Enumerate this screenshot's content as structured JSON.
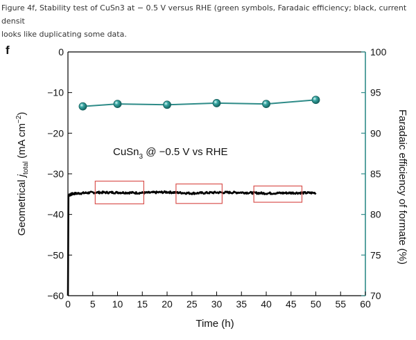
{
  "caption": "Figure 4f, Stability test of CuSn3 at − 0.5 V versus RHE (green symbols, Faradaic efficiency; black, current densit\nlooks like duplicating some data.",
  "chart_data": {
    "type": "line",
    "panel_label": "f",
    "xlabel": "Time (h)",
    "ylabel_left": "Geometrical j_total (mA cm⁻²)",
    "ylabel_left_parts": {
      "pre": "Geometrical ",
      "j": "j",
      "sub": "total",
      "post": " (mA cm",
      "sup": "−2",
      "close": ")"
    },
    "ylabel_right": "Faradaic efficiency of formate (%)",
    "annotation": {
      "text": "CuSn",
      "sub": "3",
      "rest": " @ −0.5 V vs RHE"
    },
    "xlim": [
      0,
      60
    ],
    "ylim_left": [
      -60,
      0
    ],
    "ylim_right": [
      70,
      100
    ],
    "xticks": [
      0,
      5,
      10,
      15,
      20,
      25,
      30,
      35,
      40,
      45,
      50,
      55,
      60
    ],
    "yticks_left": [
      0,
      -10,
      -20,
      -30,
      -40,
      -50,
      -60
    ],
    "ytick_labels_left": [
      "0",
      "−10",
      "−20",
      "−30",
      "−40",
      "−50",
      "−60"
    ],
    "yticks_right": [
      100,
      95,
      90,
      85,
      80,
      75,
      70
    ],
    "series": [
      {
        "axis": "left",
        "color": "#000000",
        "points": [
          [
            0,
            -60
          ],
          [
            0.1,
            -35.3
          ],
          [
            1,
            -34.9
          ],
          [
            5,
            -34.6
          ],
          [
            10,
            -34.6
          ],
          [
            15,
            -34.7
          ],
          [
            20,
            -34.5
          ],
          [
            25,
            -34.8
          ],
          [
            30,
            -34.6
          ],
          [
            35,
            -34.6
          ],
          [
            40,
            -34.8
          ],
          [
            45,
            -34.7
          ],
          [
            50,
            -34.7
          ]
        ]
      },
      {
        "axis": "right",
        "color": "#2e8b88",
        "x": [
          3,
          10,
          20,
          30,
          40,
          50
        ],
        "y": [
          93.3,
          93.6,
          93.5,
          93.7,
          93.6,
          94.1
        ]
      }
    ],
    "highlight_boxes": [
      {
        "x0": 5.5,
        "x1": 15.3,
        "y0": -31.8,
        "y1": -37.4
      },
      {
        "x0": 21.8,
        "x1": 31.1,
        "y0": -32.5,
        "y1": -37.3
      },
      {
        "x0": 37.5,
        "x1": 47.2,
        "y0": -33.0,
        "y1": -37.0
      }
    ],
    "colors": {
      "fe_series": "#2e8b88",
      "right_axis": "#2e8b88",
      "highlight_box": "#d9534f",
      "current_trace": "#000000"
    }
  }
}
